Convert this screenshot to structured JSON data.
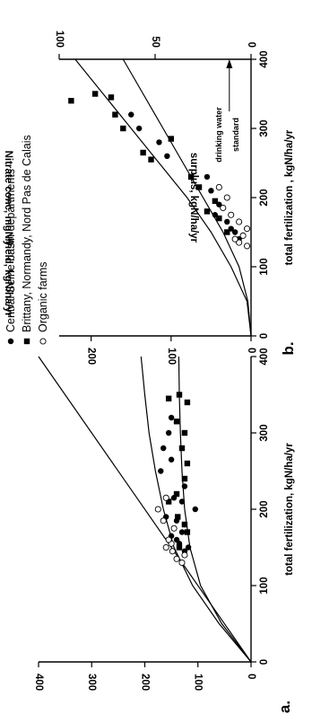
{
  "chart_data": [
    {
      "type": "scatter",
      "panel_label": "a.",
      "xlabel": "total fertilization, kgN/ha/yr",
      "ylabel": "yield, kgN/ha/yr",
      "xlim": [
        0,
        400
      ],
      "ylim": [
        0,
        400
      ],
      "xticks": [
        "0",
        "100",
        "200",
        "300",
        "400"
      ],
      "yticks": [
        "0",
        "100",
        "200",
        "300",
        "400"
      ],
      "grid": false,
      "series": [
        {
          "name": "Central Seine basin departments",
          "marker": "filled-circle",
          "points": [
            [
              145,
              125
            ],
            [
              150,
              118
            ],
            [
              155,
              135
            ],
            [
              160,
              140
            ],
            [
              165,
              150
            ],
            [
              170,
              130
            ],
            [
              175,
              145
            ],
            [
              180,
              125
            ],
            [
              185,
              140
            ],
            [
              190,
              160
            ],
            [
              200,
              105
            ],
            [
              210,
              130
            ],
            [
              215,
              145
            ],
            [
              230,
              125
            ],
            [
              250,
              170
            ],
            [
              265,
              150
            ],
            [
              280,
              165
            ],
            [
              300,
              155
            ],
            [
              320,
              150
            ]
          ]
        },
        {
          "name": "Brittany, Normandy, Nord Pas de Calais",
          "marker": "filled-square",
          "points": [
            [
              150,
              135
            ],
            [
              170,
              120
            ],
            [
              180,
              125
            ],
            [
              190,
              138
            ],
            [
              210,
              155
            ],
            [
              220,
              140
            ],
            [
              240,
              125
            ],
            [
              260,
              120
            ],
            [
              280,
              130
            ],
            [
              300,
              125
            ],
            [
              315,
              140
            ],
            [
              340,
              120
            ],
            [
              345,
              155
            ],
            [
              350,
              135
            ]
          ]
        },
        {
          "name": "Organic farms",
          "marker": "open-circle",
          "points": [
            [
              130,
              130
            ],
            [
              135,
              140
            ],
            [
              140,
              125
            ],
            [
              145,
              148
            ],
            [
              150,
              160
            ],
            [
              155,
              150
            ],
            [
              160,
              155
            ],
            [
              175,
              145
            ],
            [
              185,
              165
            ],
            [
              200,
              175
            ],
            [
              215,
              160
            ]
          ]
        }
      ],
      "lines": [
        {
          "kind": "one-to-one",
          "points": [
            [
              0,
              0
            ],
            [
              400,
              400
            ]
          ]
        },
        {
          "kind": "fit-upper",
          "points": [
            [
              0,
              0
            ],
            [
              50,
              60
            ],
            [
              100,
              110
            ],
            [
              150,
              145
            ],
            [
              200,
              165
            ],
            [
              250,
              180
            ],
            [
              300,
              192
            ],
            [
              350,
              200
            ],
            [
              400,
              207
            ]
          ]
        },
        {
          "kind": "fit-lower",
          "points": [
            [
              0,
              0
            ],
            [
              50,
              55
            ],
            [
              100,
              95
            ],
            [
              150,
              115
            ],
            [
              200,
              125
            ],
            [
              250,
              130
            ],
            [
              300,
              133
            ],
            [
              350,
              135
            ],
            [
              400,
              136
            ]
          ]
        }
      ]
    },
    {
      "type": "scatter",
      "panel_label": "b.",
      "xlabel": "total fertilization , kgN/ha/yr",
      "ylabel": "surplus, kgN/ha/yr",
      "y2label": "Nitrate conc, mgN/l",
      "annotation": "drinking water standard",
      "xlim": [
        0,
        400
      ],
      "ylim": [
        0,
        240
      ],
      "y2lim": [
        0,
        100
      ],
      "xticks": [
        "0",
        "100",
        "200",
        "300",
        "400"
      ],
      "yticks": [
        "0",
        "100",
        "200"
      ],
      "y2ticks": [
        "0",
        "50",
        "100"
      ],
      "standard_line_y2": 11.3,
      "grid": false,
      "series": [
        {
          "name": "Central Seine basin departments",
          "marker": "filled-circle",
          "points": [
            [
              140,
              15
            ],
            [
              150,
              20
            ],
            [
              155,
              25
            ],
            [
              165,
              30
            ],
            [
              175,
              45
            ],
            [
              190,
              40
            ],
            [
              210,
              50
            ],
            [
              230,
              55
            ],
            [
              260,
              105
            ],
            [
              280,
              115
            ],
            [
              300,
              140
            ],
            [
              320,
              150
            ]
          ]
        },
        {
          "name": "Brittany, Normandy, Nord Pas de Calais",
          "marker": "filled-square",
          "points": [
            [
              150,
              30
            ],
            [
              170,
              40
            ],
            [
              180,
              55
            ],
            [
              195,
              45
            ],
            [
              215,
              65
            ],
            [
              230,
              75
            ],
            [
              255,
              125
            ],
            [
              265,
              135
            ],
            [
              285,
              100
            ],
            [
              300,
              160
            ],
            [
              320,
              170
            ],
            [
              345,
              175
            ],
            [
              350,
              195
            ],
            [
              340,
              225
            ]
          ]
        },
        {
          "name": "Organic farms",
          "marker": "open-circle",
          "points": [
            [
              130,
              5
            ],
            [
              135,
              15
            ],
            [
              140,
              20
            ],
            [
              145,
              10
            ],
            [
              155,
              5
            ],
            [
              165,
              15
            ],
            [
              175,
              25
            ],
            [
              185,
              35
            ],
            [
              200,
              30
            ],
            [
              215,
              40
            ]
          ]
        }
      ],
      "lines": [
        {
          "kind": "fit-upper",
          "points": [
            [
              0,
              0
            ],
            [
              50,
              5
            ],
            [
              100,
              25
            ],
            [
              150,
              50
            ],
            [
              200,
              80
            ],
            [
              250,
              115
            ],
            [
              300,
              150
            ],
            [
              350,
              185
            ],
            [
              400,
              220
            ]
          ]
        },
        {
          "kind": "fit-lower",
          "points": [
            [
              0,
              0
            ],
            [
              50,
              4
            ],
            [
              100,
              15
            ],
            [
              150,
              35
            ],
            [
              200,
              60
            ],
            [
              250,
              85
            ],
            [
              300,
              110
            ],
            [
              350,
              135
            ],
            [
              400,
              160
            ]
          ]
        }
      ]
    }
  ]
}
